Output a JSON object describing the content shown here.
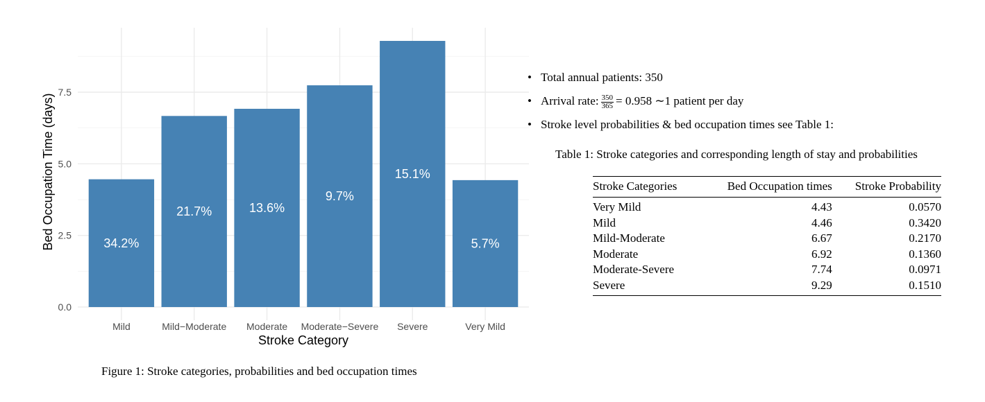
{
  "chart_data": {
    "type": "bar",
    "categories": [
      "Mild",
      "Mild−Moderate",
      "Moderate",
      "Moderate−Severe",
      "Severe",
      "Very Mild"
    ],
    "values": [
      4.46,
      6.67,
      6.92,
      7.74,
      9.29,
      4.43
    ],
    "bar_labels": [
      "34.2%",
      "21.7%",
      "13.6%",
      "9.7%",
      "15.1%",
      "5.7%"
    ],
    "bar_label_positions": [
      2.23,
      3.335,
      3.46,
      3.87,
      4.645,
      2.215
    ],
    "xlabel": "Stroke Category",
    "ylabel": "Bed Occupation Time (days)",
    "y_ticks": [
      0,
      2.5,
      5,
      7.5
    ],
    "y_tick_labels": [
      "0.0",
      "2.5",
      "5.0",
      "7.5"
    ],
    "ylim": [
      -0.46,
      9.75
    ],
    "bar_color": "#4682B4",
    "grid": true
  },
  "figure_caption": "Figure 1: Stroke categories, probabilities and bed occupation times",
  "bullets": {
    "item1": "Total annual patients: 350",
    "item2_prefix": "Arrival rate:",
    "item2_num": "350",
    "item2_den": "365",
    "item2_suffix": "= 0.958 ∼1 patient per day",
    "item3": "Stroke level probabilities & bed occupation times see Table 1:"
  },
  "table": {
    "caption": "Table 1: Stroke categories and corresponding length of stay and probabilities",
    "headers": [
      "Stroke Categories",
      "Bed Occupation times",
      "Stroke Probability"
    ],
    "rows": [
      [
        "Very Mild",
        "4.43",
        "0.0570"
      ],
      [
        "Mild",
        "4.46",
        "0.3420"
      ],
      [
        "Mild-Moderate",
        "6.67",
        "0.2170"
      ],
      [
        "Moderate",
        "6.92",
        "0.1360"
      ],
      [
        "Moderate-Severe",
        "7.74",
        "0.0971"
      ],
      [
        "Severe",
        "9.29",
        "0.1510"
      ]
    ]
  }
}
